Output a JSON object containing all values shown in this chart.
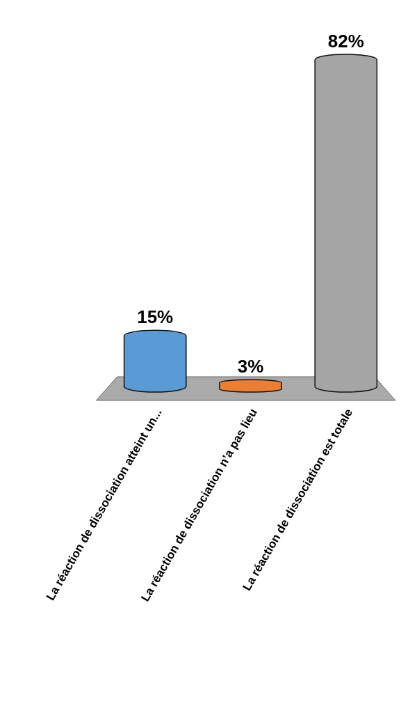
{
  "chart_data": {
    "type": "bar",
    "categories": [
      "La réaction de dissociation atteint un...",
      "La réaction de dissociation n’a pas lieu",
      "La réaction de dissociation est totale"
    ],
    "values": [
      15,
      3,
      82
    ],
    "colors": [
      "#5b9bd5",
      "#ed7d31",
      "#a5a5a5"
    ],
    "value_labels": [
      "15%",
      "3%",
      "82%"
    ]
  }
}
